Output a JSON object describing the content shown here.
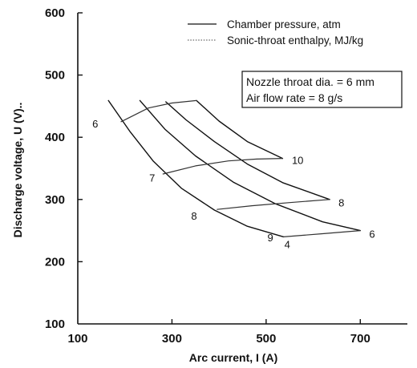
{
  "chart_data": {
    "type": "line",
    "xlabel": "Arc current, I (A)",
    "ylabel": "Discharge voltage, U (V)..",
    "xlim": [
      100,
      800
    ],
    "ylim": [
      100,
      600
    ],
    "x_ticks": [
      "100",
      "300",
      "500",
      "700"
    ],
    "y_ticks": [
      "100",
      "200",
      "300",
      "400",
      "500",
      "600"
    ],
    "grid": false,
    "legend_position": "top-right",
    "legend": [
      {
        "label": "Chamber pressure, atm",
        "style": "solid"
      },
      {
        "label": "Sonic-throat enthalpy, MJ/kg",
        "style": "dotted"
      }
    ],
    "annotation": {
      "lines": [
        "Nozzle throat dia. = 6 mm",
        "Air flow rate = 8 g/s"
      ]
    },
    "series": [
      {
        "name": "4",
        "kind": "chamber pressure",
        "x": [
          165,
          210,
          260,
          320,
          390,
          460,
          537
        ],
        "y": [
          459,
          410,
          362,
          318,
          283,
          257,
          240
        ]
      },
      {
        "name": "6",
        "kind": "chamber pressure",
        "x": [
          232,
          285,
          350,
          430,
          520,
          620,
          700
        ],
        "y": [
          459,
          413,
          370,
          328,
          293,
          264,
          250
        ]
      },
      {
        "name": "8",
        "kind": "chamber pressure",
        "x": [
          287,
          330,
          390,
          460,
          535,
          635
        ],
        "y": [
          457,
          428,
          393,
          357,
          327,
          300
        ]
      },
      {
        "name": "10",
        "kind": "chamber pressure",
        "x": [
          352,
          400,
          460,
          535
        ],
        "y": [
          459,
          426,
          393,
          366
        ]
      },
      {
        "name": "6",
        "kind": "sonic-throat enthalpy",
        "x": [
          192,
          250,
          300,
          352
        ],
        "y": [
          425,
          447,
          455,
          459
        ]
      },
      {
        "name": "7",
        "kind": "sonic-throat enthalpy",
        "x": [
          281,
          350,
          420,
          480,
          535
        ],
        "y": [
          341,
          354,
          362,
          365,
          366
        ]
      },
      {
        "name": "8",
        "kind": "sonic-throat enthalpy",
        "x": [
          396,
          470,
          550,
          635
        ],
        "y": [
          284,
          290,
          295,
          300
        ]
      },
      {
        "name": "9",
        "kind": "sonic-throat enthalpy",
        "x": [
          537,
          620,
          700
        ],
        "y": [
          240,
          245,
          250
        ]
      }
    ],
    "data_labels": [
      {
        "text": "6",
        "x": 137,
        "y": 421
      },
      {
        "text": "7",
        "x": 258,
        "y": 334
      },
      {
        "text": "8",
        "x": 347,
        "y": 273
      },
      {
        "text": "9",
        "x": 509,
        "y": 238
      },
      {
        "text": "4",
        "x": 545,
        "y": 227
      },
      {
        "text": "10",
        "x": 567,
        "y": 362
      },
      {
        "text": "8",
        "x": 660,
        "y": 294
      },
      {
        "text": "6",
        "x": 725,
        "y": 244
      }
    ]
  }
}
